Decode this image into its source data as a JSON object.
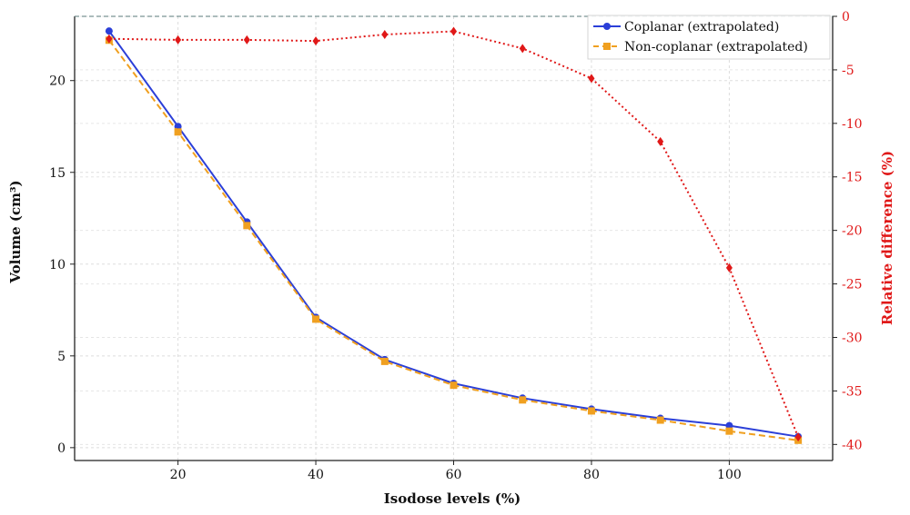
{
  "chart_data": {
    "type": "line",
    "title": "",
    "xlabel": "Isodose levels (%)",
    "ylabel_left": "Volume (cm³)",
    "ylabel_right": "Relative difference (%)",
    "x": [
      10,
      20,
      30,
      40,
      50,
      60,
      70,
      80,
      90,
      100,
      110
    ],
    "xlim": [
      5,
      115
    ],
    "x_ticks": [
      20,
      40,
      60,
      80,
      100
    ],
    "ylim_left": [
      -0.7,
      23.5
    ],
    "y_ticks_left": [
      0,
      5,
      10,
      15,
      20
    ],
    "ylim_right": [
      -41.5,
      0
    ],
    "y_ticks_right": [
      0,
      -5,
      -10,
      -15,
      -20,
      -25,
      -30,
      -35,
      -40
    ],
    "grid": true,
    "legend_position": "top-right",
    "series": [
      {
        "name": "Coplanar (extrapolated)",
        "axis": "left",
        "color": "#2b3fd8",
        "line_style": "solid",
        "marker": "circle",
        "values": [
          22.7,
          17.5,
          12.3,
          7.1,
          4.8,
          3.5,
          2.7,
          2.1,
          1.6,
          1.2,
          0.6
        ]
      },
      {
        "name": "Non-coplanar (extrapolated)",
        "axis": "left",
        "color": "#f0a020",
        "line_style": "dashed",
        "marker": "square",
        "values": [
          22.2,
          17.2,
          12.1,
          7.0,
          4.7,
          3.4,
          2.6,
          2.0,
          1.5,
          0.9,
          0.4
        ]
      },
      {
        "axis": "right",
        "color": "#e01818",
        "line_style": "dotted",
        "marker": "diamond",
        "values": [
          -2.1,
          -2.2,
          -2.2,
          -2.3,
          -1.7,
          -1.4,
          -3.0,
          -5.8,
          -11.7,
          -23.5,
          -39.3
        ]
      }
    ]
  }
}
